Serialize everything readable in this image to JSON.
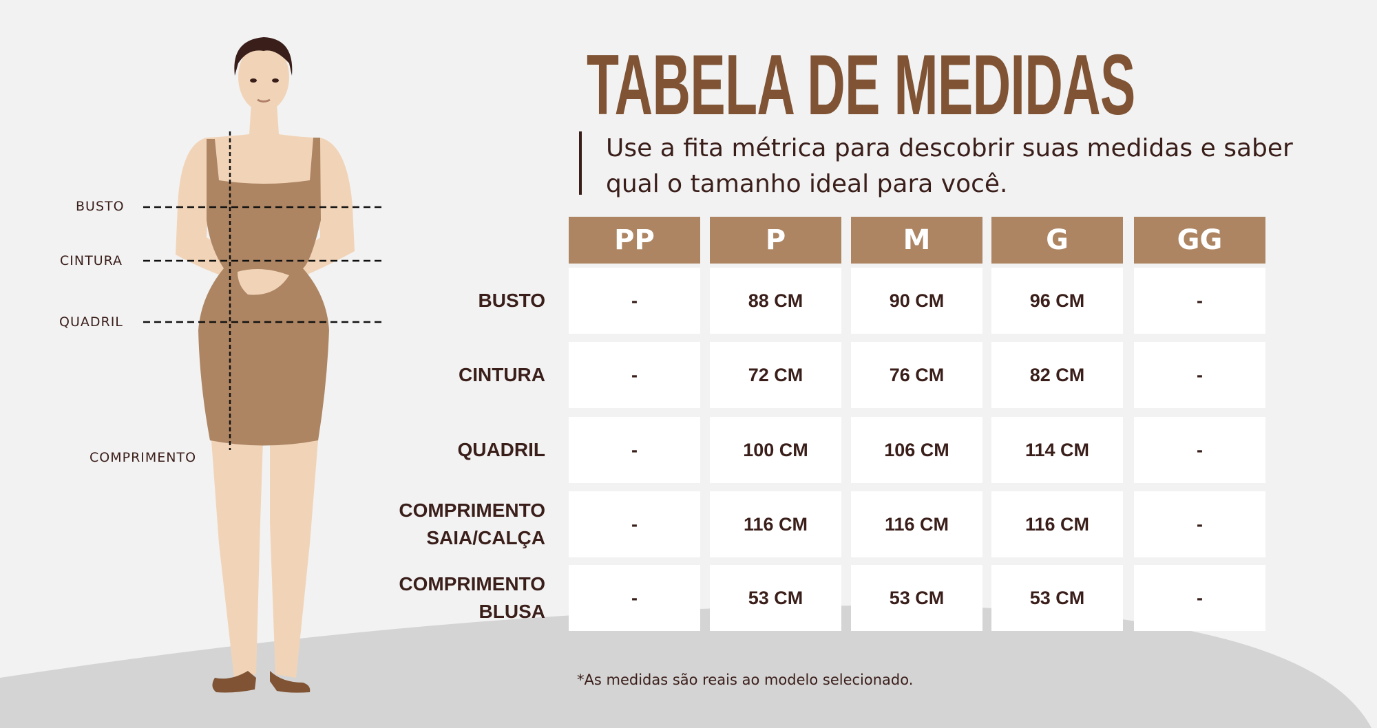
{
  "title": "TABELA DE MEDIDAS",
  "subtitle": "Use a fita métrica para descobrir suas medidas e saber qual o tamanho ideal para você.",
  "figure_labels": {
    "busto": "BUSTO",
    "cintura": "CINTURA",
    "quadril": "QUADRIL",
    "comprimento": "COMPRIMENTO"
  },
  "table": {
    "sizes": [
      "PP",
      "P",
      "M",
      "G",
      "GG"
    ],
    "rows": [
      {
        "label": [
          "BUSTO"
        ],
        "values": [
          "-",
          "88 CM",
          "90 CM",
          "96 CM",
          "-"
        ]
      },
      {
        "label": [
          "CINTURA"
        ],
        "values": [
          "-",
          "72 CM",
          "76 CM",
          "82 CM",
          "-"
        ]
      },
      {
        "label": [
          "QUADRIL"
        ],
        "values": [
          "-",
          "100 CM",
          "106 CM",
          "114 CM",
          "-"
        ]
      },
      {
        "label": [
          "COMPRIMENTO",
          "SAIA/CALÇA"
        ],
        "values": [
          "-",
          "116 CM",
          "116 CM",
          "116 CM",
          "-"
        ]
      },
      {
        "label": [
          "COMPRIMENTO",
          "BLUSA"
        ],
        "values": [
          "-",
          "53 CM",
          "53 CM",
          "53 CM",
          "-"
        ]
      }
    ]
  },
  "footnote": "*As medidas são reais ao modelo selecionado.",
  "colors": {
    "title": "#7f5333",
    "header": "#ad8563",
    "text": "#3a1e1a",
    "background": "#f2f2f2",
    "ground": "#d4d4d4",
    "dress": "#ad8563",
    "skin": "#f1d4b8"
  }
}
